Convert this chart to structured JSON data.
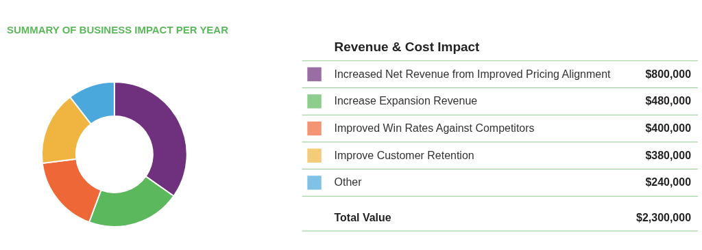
{
  "chart_data": {
    "type": "donut",
    "title": "SUMMARY OF BUSINESS IMPACT PER YEAR",
    "legend_title": "Revenue & Cost Impact",
    "categories": [
      "Increased Net Revenue from Improved Pricing Alignment",
      "Increase Expansion Revenue",
      "Improved Win Rates Against Competitors",
      "Improve Customer Retention",
      "Other"
    ],
    "values": [
      800000,
      480000,
      400000,
      380000,
      240000
    ],
    "colors": [
      "#6f317e",
      "#5cb85c",
      "#ee6736",
      "#efb540",
      "#4aa8dc"
    ],
    "value_labels": [
      "$800,000",
      "$480,000",
      "$400,000",
      "$380,000",
      "$240,000"
    ],
    "annotations": [
      "Total Value",
      "$2,300,000"
    ],
    "legend": "right"
  }
}
